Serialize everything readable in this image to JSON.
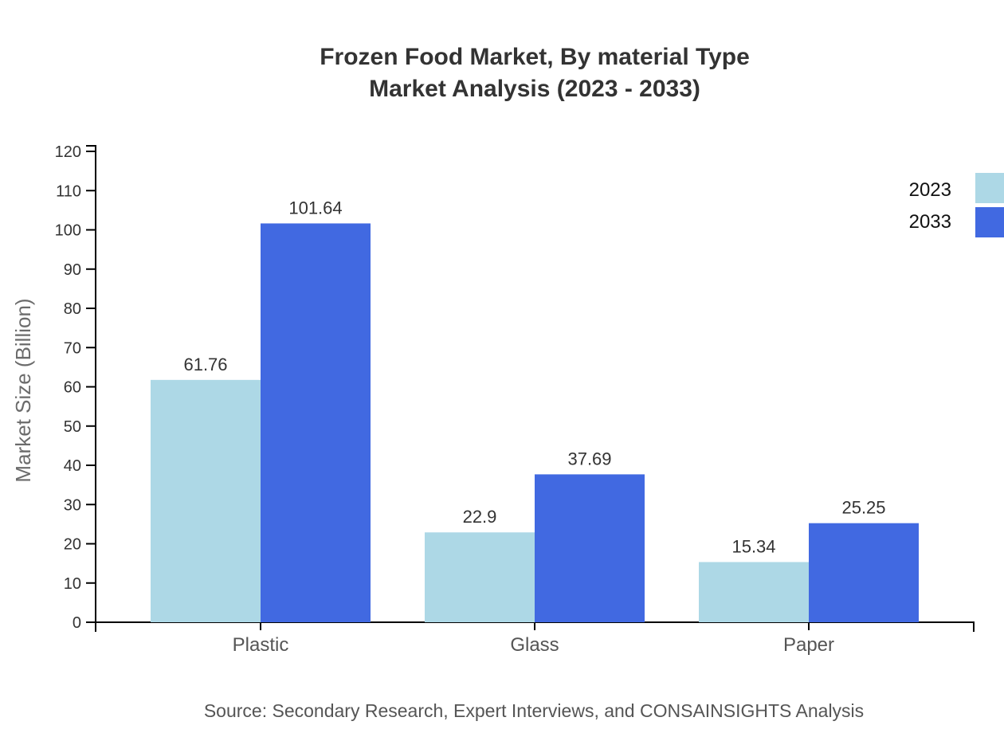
{
  "title": {
    "line1": "Frozen Food Market, By material Type",
    "line2": "Market Analysis (2023 - 2033)"
  },
  "source": "Source: Secondary Research, Expert Interviews, and CONSAINSIGHTS Analysis",
  "chart_data": {
    "type": "bar",
    "categories": [
      "Plastic",
      "Glass",
      "Paper"
    ],
    "series": [
      {
        "name": "2023",
        "color": "#ADD8E6",
        "values": [
          61.76,
          22.9,
          15.34
        ]
      },
      {
        "name": "2033",
        "color": "#4169E1",
        "values": [
          101.64,
          37.69,
          25.25
        ]
      }
    ],
    "data_labels": [
      [
        "61.76",
        "22.9",
        "15.34"
      ],
      [
        "101.64",
        "37.69",
        "25.25"
      ]
    ],
    "xlabel": "",
    "ylabel": "Market Size (Billion)",
    "ylim": [
      0,
      120
    ],
    "ytick_step": 10,
    "grid": false,
    "legend_position": "top-right",
    "axis_color": "#000000"
  }
}
